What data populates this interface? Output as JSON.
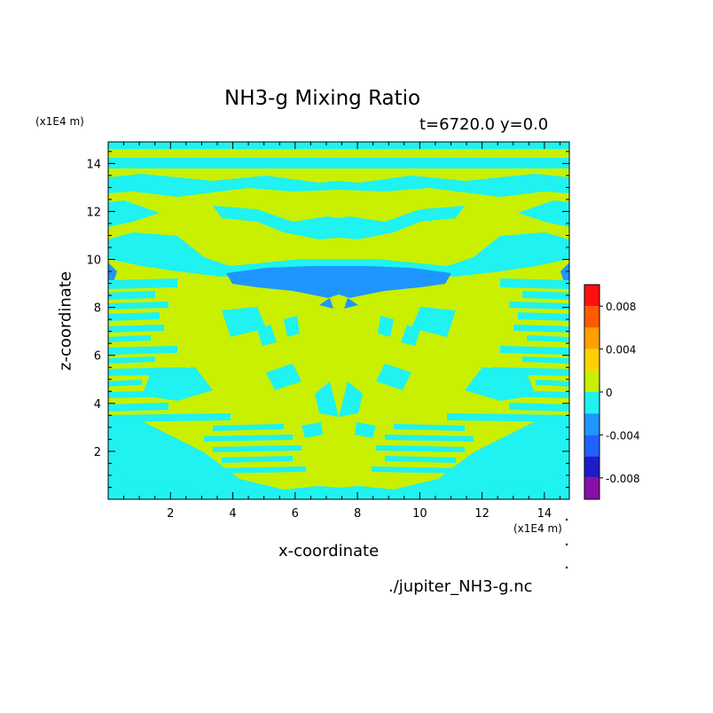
{
  "chart_data": {
    "type": "heatmap",
    "title": "NH3-g Mixing Ratio",
    "subtitle": "t=6720.0 y=0.0",
    "xlabel": "x-coordinate",
    "ylabel": "z-coordinate",
    "x_unit": "(x1E4 m)",
    "y_unit": "(x1E4 m)",
    "source": "./jupiter_NH3-g.nc",
    "xlim": [
      0,
      14.8
    ],
    "ylim": [
      0,
      14.9
    ],
    "x_ticks": [
      2,
      4,
      6,
      8,
      10,
      12,
      14
    ],
    "y_ticks": [
      2,
      4,
      6,
      8,
      10,
      12,
      14
    ],
    "colorbar": {
      "levels": [
        -0.01,
        -0.008,
        -0.006,
        -0.004,
        -0.002,
        0,
        0.002,
        0.004,
        0.006,
        0.008,
        0.01
      ],
      "colors": [
        "#8a0fa6",
        "#1c1cc8",
        "#1f62ff",
        "#1f96ff",
        "#1ff2f0",
        "#c8f000",
        "#ffd000",
        "#ffa000",
        "#ff5a00",
        "#ff1010",
        "#ffb0b0"
      ],
      "tick_values": [
        0.008,
        0.004,
        0,
        -0.004,
        -0.008
      ],
      "tick_labels": [
        "0.008",
        "0.004",
        "0",
        "-0.004",
        "-0.008"
      ]
    },
    "field_regions": [
      {
        "class": "level_0_to_0.002",
        "color": "#c8f000",
        "description_value": "0 to 0.002"
      },
      {
        "class": "level_-0.002_to_0",
        "color": "#1ff2f0",
        "description_value": "-0.002 to 0"
      },
      {
        "class": "level_-0.004_to_-0.002",
        "color": "#1f96ff",
        "description_value": "-0.004 to -0.002"
      }
    ]
  }
}
